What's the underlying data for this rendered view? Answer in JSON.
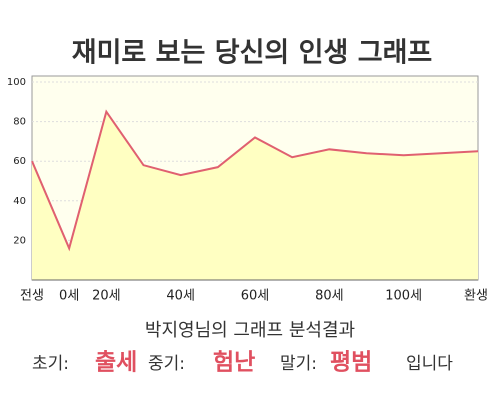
{
  "chart_data": {
    "type": "area",
    "title": "재미로 보는 당신의 인생 그래프",
    "categories": [
      "전생",
      "0세",
      "20세",
      null,
      "40세",
      null,
      "60세",
      null,
      "80세",
      null,
      "100세",
      null,
      "환생"
    ],
    "values": [
      60,
      16,
      85,
      58,
      53,
      57,
      72,
      62,
      66,
      64,
      63,
      64,
      65
    ],
    "color": "#e06070",
    "fill": "#ffffc2",
    "background": "#ffffee",
    "ylim": [
      0,
      100
    ],
    "yticks": [
      20,
      40,
      60,
      80,
      100
    ],
    "grid": true
  },
  "result": {
    "heading": "박지영님의 그래프 분석결과",
    "early_label": "초기:",
    "early": "출세",
    "middle_label": "중기:",
    "middle": "험난",
    "late_label": "말기:",
    "late": "평범",
    "ending": "입니다"
  }
}
